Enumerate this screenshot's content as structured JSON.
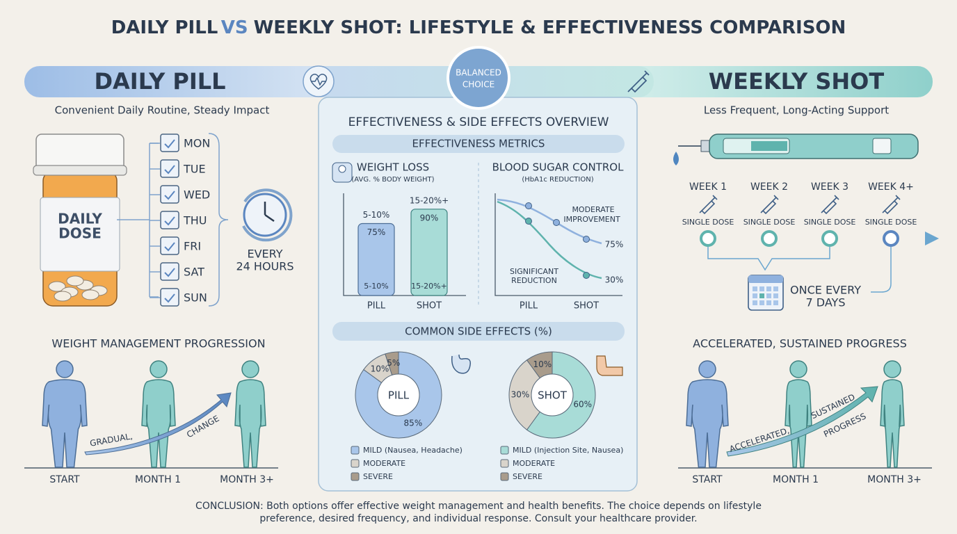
{
  "title": {
    "part1": "DAILY PILL",
    "part2": "VS",
    "part3": "WEEKLY SHOT: LIFESTYLE & EFFECTIVENESS COMPARISON"
  },
  "badge": [
    "BALANCED",
    "CHOICE"
  ],
  "left": {
    "heading": "DAILY PILL",
    "subtitle": "Convenient Daily Routine, Steady Impact",
    "bottle_label": [
      "DAILY",
      "DOSE"
    ],
    "days": [
      "MON",
      "TUE",
      "WED",
      "THU",
      "FRI",
      "SAT",
      "SUN"
    ],
    "interval": [
      "EVERY",
      "24 HOURS"
    ],
    "progression_title": "WEIGHT MANAGEMENT PROGRESSION",
    "stages": [
      "START",
      "MONTH 1",
      "MONTH 3+"
    ],
    "arrow_text": [
      "GRADUAL,",
      "CHANGE"
    ]
  },
  "right": {
    "heading": "WEEKLY SHOT",
    "subtitle": "Less Frequent, Long-Acting Support",
    "weeks": [
      {
        "label": "WEEK 1",
        "dose": "SINGLE DOSE"
      },
      {
        "label": "WEEK 2",
        "dose": "SINGLE DOSE"
      },
      {
        "label": "WEEK 3",
        "dose": "SINGLE DOSE"
      },
      {
        "label": "WEEK 4+",
        "dose": "SINGLE DOSE"
      }
    ],
    "interval": [
      "ONCE EVERY",
      "7 DAYS"
    ],
    "progression_title": "ACCELERATED, SUSTAINED PROGRESS",
    "stages": [
      "START",
      "MONTH 1",
      "MONTH 3+"
    ],
    "arrow_text": [
      "ACCELERATED,",
      "SUSTAINED",
      "PROGRESS"
    ]
  },
  "center": {
    "heading": "EFFECTIVENESS & SIDE EFFECTS OVERVIEW",
    "metrics_title": "EFFECTIVENESS METRICS",
    "weight_loss": {
      "type": "bar",
      "title": "WEIGHT LOSS",
      "subtitle": "(AVG. % BODY WEIGHT)",
      "categories": [
        "PILL",
        "SHOT"
      ],
      "values": [
        75,
        90
      ],
      "value_labels": [
        "75%",
        "90%"
      ],
      "range_labels": [
        "5-10%",
        "15-20%+"
      ],
      "colors": [
        "#a9c6ea",
        "#a8dcd7"
      ]
    },
    "blood_sugar": {
      "title": "BLOOD SUGAR CONTROL",
      "subtitle": "(HbA1c REDUCTION)",
      "categories": [
        "PILL",
        "SHOT"
      ],
      "annotations": [
        [
          "MODERATE",
          "IMPROVEMENT"
        ],
        [
          "SIGNIFICANT",
          "REDUCTION"
        ]
      ],
      "end_labels": [
        "75%",
        "30%"
      ]
    },
    "side_effects_title": "COMMON SIDE EFFECTS (%)",
    "donuts": [
      {
        "type": "pie",
        "label": "PILL",
        "categories": [
          "MILD (Nausea, Headache)",
          "MODERATE",
          "SEVERE"
        ],
        "values": [
          85,
          10,
          5
        ],
        "value_labels": [
          "85%",
          "10%",
          "5%"
        ],
        "colors": [
          "#a9c6ea",
          "#d9d4cb",
          "#a99c8c"
        ]
      },
      {
        "type": "pie",
        "label": "SHOT",
        "categories": [
          "MILD (Injection Site, Nausea)",
          "MODERATE",
          "SEVERE"
        ],
        "values": [
          60,
          30,
          10
        ],
        "value_labels": [
          "60%",
          "30%",
          "10%"
        ],
        "colors": [
          "#a8dcd7",
          "#d9d4cb",
          "#a99c8c"
        ]
      }
    ]
  },
  "conclusion": [
    "CONCLUSION: Both options offer effective weight management and health benefits. The choice depends on lifestyle",
    "preference, desired frequency, and individual response. Consult your healthcare provider."
  ]
}
